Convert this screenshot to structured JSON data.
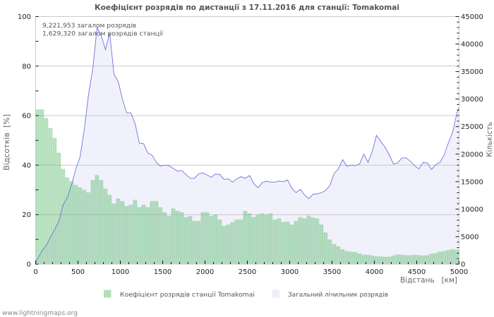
{
  "header": {
    "title": "Коефіцієнт розрядів по дистанції з 17.11.2016 для станції: Tomakomai"
  },
  "info": {
    "total_strokes": "9,221,953 загалом розрядів",
    "station_strokes": "1,629,320 загалом розрядів станції"
  },
  "axes": {
    "left_title": "Відсотків  [%]",
    "right_title": "Кількість",
    "x_title": "Відстань   [км]"
  },
  "legend": {
    "items": [
      {
        "label": "Коефіцієнт розрядів станції Tomakomai",
        "color": "#b1dfb9"
      },
      {
        "label": "Загальний лічильник розрядів",
        "color": "#eeeefb"
      }
    ]
  },
  "footer": {
    "text": "www.lightningmaps.org"
  },
  "colors": {
    "bar": "rgba(100,190,115,0.5)",
    "area_fill": "#f1f1fc",
    "line": "#7272dc",
    "grid": "#c8c8c8"
  },
  "chart_data": {
    "type": "bar",
    "title": "Коефіцієнт розрядів по дистанції з 17.11.2016 для станції: Tomakomai",
    "xlabel": "Відстань [км]",
    "ylabel": "Відсотків [%]",
    "y2label": "Кількість",
    "xlim": [
      0,
      5000
    ],
    "ylim": [
      0,
      100
    ],
    "y2lim": [
      0,
      45000
    ],
    "grid": true,
    "legend_position": "bottom",
    "bin_width_km": 50,
    "x_ticks": [
      0,
      500,
      1000,
      1500,
      2000,
      2500,
      3000,
      3500,
      4000,
      4500,
      5000
    ],
    "y_ticks": [
      0,
      20,
      40,
      60,
      80,
      100
    ],
    "y2_ticks": [
      0,
      5000,
      10000,
      15000,
      20000,
      25000,
      30000,
      35000,
      40000,
      45000
    ],
    "annotations": [
      "9,221,953 загалом розрядів",
      "1,629,320 загалом розрядів станції"
    ],
    "x": [
      0,
      50,
      100,
      150,
      200,
      250,
      300,
      350,
      400,
      450,
      500,
      550,
      600,
      650,
      700,
      750,
      800,
      850,
      900,
      950,
      1000,
      1050,
      1100,
      1150,
      1200,
      1250,
      1300,
      1350,
      1400,
      1450,
      1500,
      1550,
      1600,
      1650,
      1700,
      1750,
      1800,
      1850,
      1900,
      1950,
      2000,
      2050,
      2100,
      2150,
      2200,
      2250,
      2300,
      2350,
      2400,
      2450,
      2500,
      2550,
      2600,
      2650,
      2700,
      2750,
      2800,
      2850,
      2900,
      2950,
      3000,
      3050,
      3100,
      3150,
      3200,
      3250,
      3300,
      3350,
      3400,
      3450,
      3500,
      3550,
      3600,
      3650,
      3700,
      3750,
      3800,
      3850,
      3900,
      3950,
      4000,
      4050,
      4100,
      4150,
      4200,
      4250,
      4300,
      4350,
      4400,
      4450,
      4500,
      4550,
      4600,
      4650,
      4700,
      4750,
      4800,
      4850,
      4900,
      4950
    ],
    "series": [
      {
        "name": "Коефіцієнт розрядів станції Tomakomai",
        "type": "bar",
        "axis": "left",
        "unit": "%",
        "values": [
          62.5,
          62.5,
          59,
          55,
          51,
          45,
          38.5,
          35,
          33.5,
          32,
          31,
          30,
          29,
          34,
          36,
          34,
          30.5,
          28,
          24.5,
          26.5,
          25.5,
          23.5,
          24,
          26,
          23,
          24,
          23,
          25.5,
          25.5,
          23,
          21,
          19.5,
          22.5,
          21.5,
          21,
          19,
          19.5,
          17.5,
          17.5,
          21,
          21,
          19.5,
          20,
          18,
          15.5,
          16,
          17,
          18,
          18,
          21.5,
          20.5,
          19,
          20,
          20.5,
          20,
          20.5,
          18,
          18.5,
          17,
          17.2,
          16,
          17.5,
          19,
          18.5,
          19.6,
          18.8,
          18.5,
          16,
          12.8,
          10,
          8.2,
          7.2,
          6,
          5.3,
          5,
          4.9,
          4.3,
          3.8,
          3.8,
          3.5,
          3.2,
          3.1,
          3.0,
          3.0,
          3.5,
          3.9,
          3.8,
          3.6,
          3.6,
          3.8,
          3.7,
          3.5,
          3.6,
          4.2,
          4.5,
          5,
          5.3,
          5.7,
          6.1,
          5.8
        ]
      },
      {
        "name": "Загальний лічильник розрядів",
        "type": "area",
        "axis": "right",
        "unit": "count",
        "values": [
          1000,
          2400,
          3400,
          4900,
          6300,
          7800,
          10800,
          12150,
          14500,
          17300,
          19500,
          24500,
          30900,
          35500,
          43000,
          41500,
          39000,
          42000,
          34500,
          33200,
          30000,
          27500,
          27500,
          25500,
          22000,
          21900,
          20200,
          19800,
          18500,
          17800,
          18000,
          17900,
          17400,
          16900,
          17000,
          16300,
          15600,
          15600,
          16400,
          16600,
          16200,
          15800,
          16400,
          16300,
          15400,
          15500,
          14900,
          15500,
          15900,
          15600,
          16100,
          14700,
          13900,
          14800,
          15100,
          14900,
          14900,
          15100,
          15000,
          15300,
          13800,
          13000,
          13600,
          12600,
          11900,
          12700,
          12800,
          13000,
          13400,
          14300,
          16500,
          17300,
          19000,
          17800,
          18000,
          17900,
          18200,
          20000,
          18500,
          20500,
          23400,
          22300,
          21300,
          19900,
          18200,
          18400,
          19300,
          19300,
          18700,
          17900,
          17300,
          18500,
          18400,
          17200,
          18100,
          18500,
          19900,
          22100,
          24000,
          27500
        ]
      }
    ]
  }
}
